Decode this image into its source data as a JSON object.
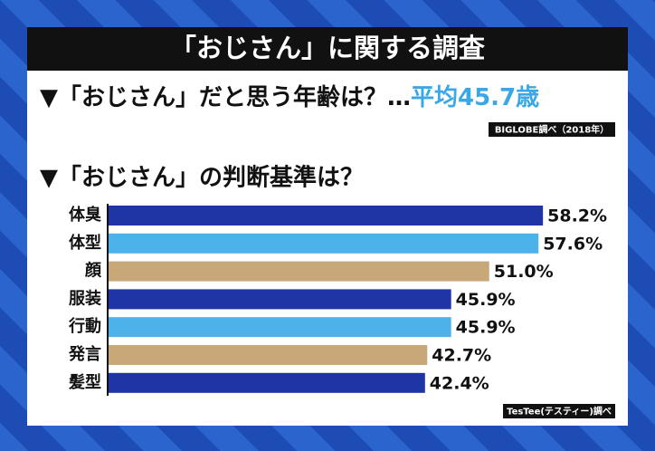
{
  "header": {
    "title": "「おじさん」に関する調査"
  },
  "question1": {
    "text": "▼「おじさん」だと思う年齢は？…",
    "answer": "平均45.7歳",
    "source": "BIGLOBE調べ（2018年）"
  },
  "chart_data": {
    "type": "bar",
    "orientation": "horizontal",
    "title": "▼「おじさん」の判断基準は？",
    "categories": [
      "体臭",
      "体型",
      "顔",
      "服装",
      "行動",
      "発言",
      "髪型"
    ],
    "values": [
      58.2,
      57.6,
      51.0,
      45.9,
      45.9,
      42.7,
      42.4
    ],
    "value_labels": [
      "58.2%",
      "57.6%",
      "51.0%",
      "45.9%",
      "45.9%",
      "42.7%",
      "42.4%"
    ],
    "colors": [
      "#1f35a6",
      "#4db2ea",
      "#c8a878",
      "#1f35a6",
      "#4db2ea",
      "#c8a878",
      "#1f35a6"
    ],
    "source": "TesTee(テスティー)調べ"
  }
}
